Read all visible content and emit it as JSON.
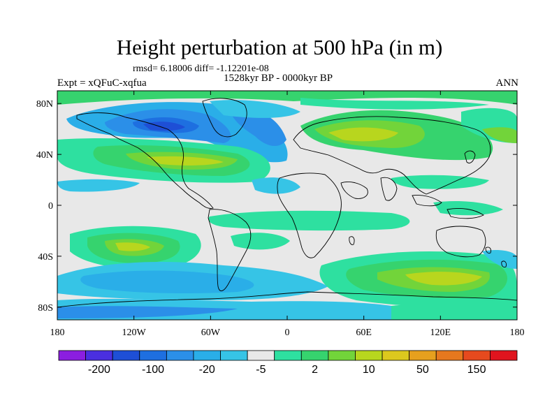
{
  "title": "Height perturbation at 500 hPa (in m)",
  "stats_line": "rmsd= 6.18006 diff= -1.12201e-08",
  "period_line": "1528kyr BP - 0000kyr BP",
  "experiment": "Expt = xQFuC-xqfua",
  "season": "ANN",
  "map": {
    "lon_ticks": [
      "180",
      "120W",
      "60W",
      "0",
      "60E",
      "120E",
      "180"
    ],
    "lat_ticks": [
      "80N",
      "40N",
      "0",
      "40S",
      "80S"
    ]
  },
  "colorbar": {
    "colors": [
      "#8b1ee0",
      "#4a2fe0",
      "#1e4fd6",
      "#1e6fe0",
      "#2b8fe8",
      "#2aaee8",
      "#36c4e6",
      "#e8e8e8",
      "#2ee0a0",
      "#36d36e",
      "#72d43a",
      "#b8d61e",
      "#dcc81e",
      "#e6a01e",
      "#e6781e",
      "#e64a1e",
      "#e0141e"
    ],
    "labels": [
      "-200",
      "-100",
      "-20",
      "-5",
      "2",
      "10",
      "50",
      "150"
    ]
  }
}
